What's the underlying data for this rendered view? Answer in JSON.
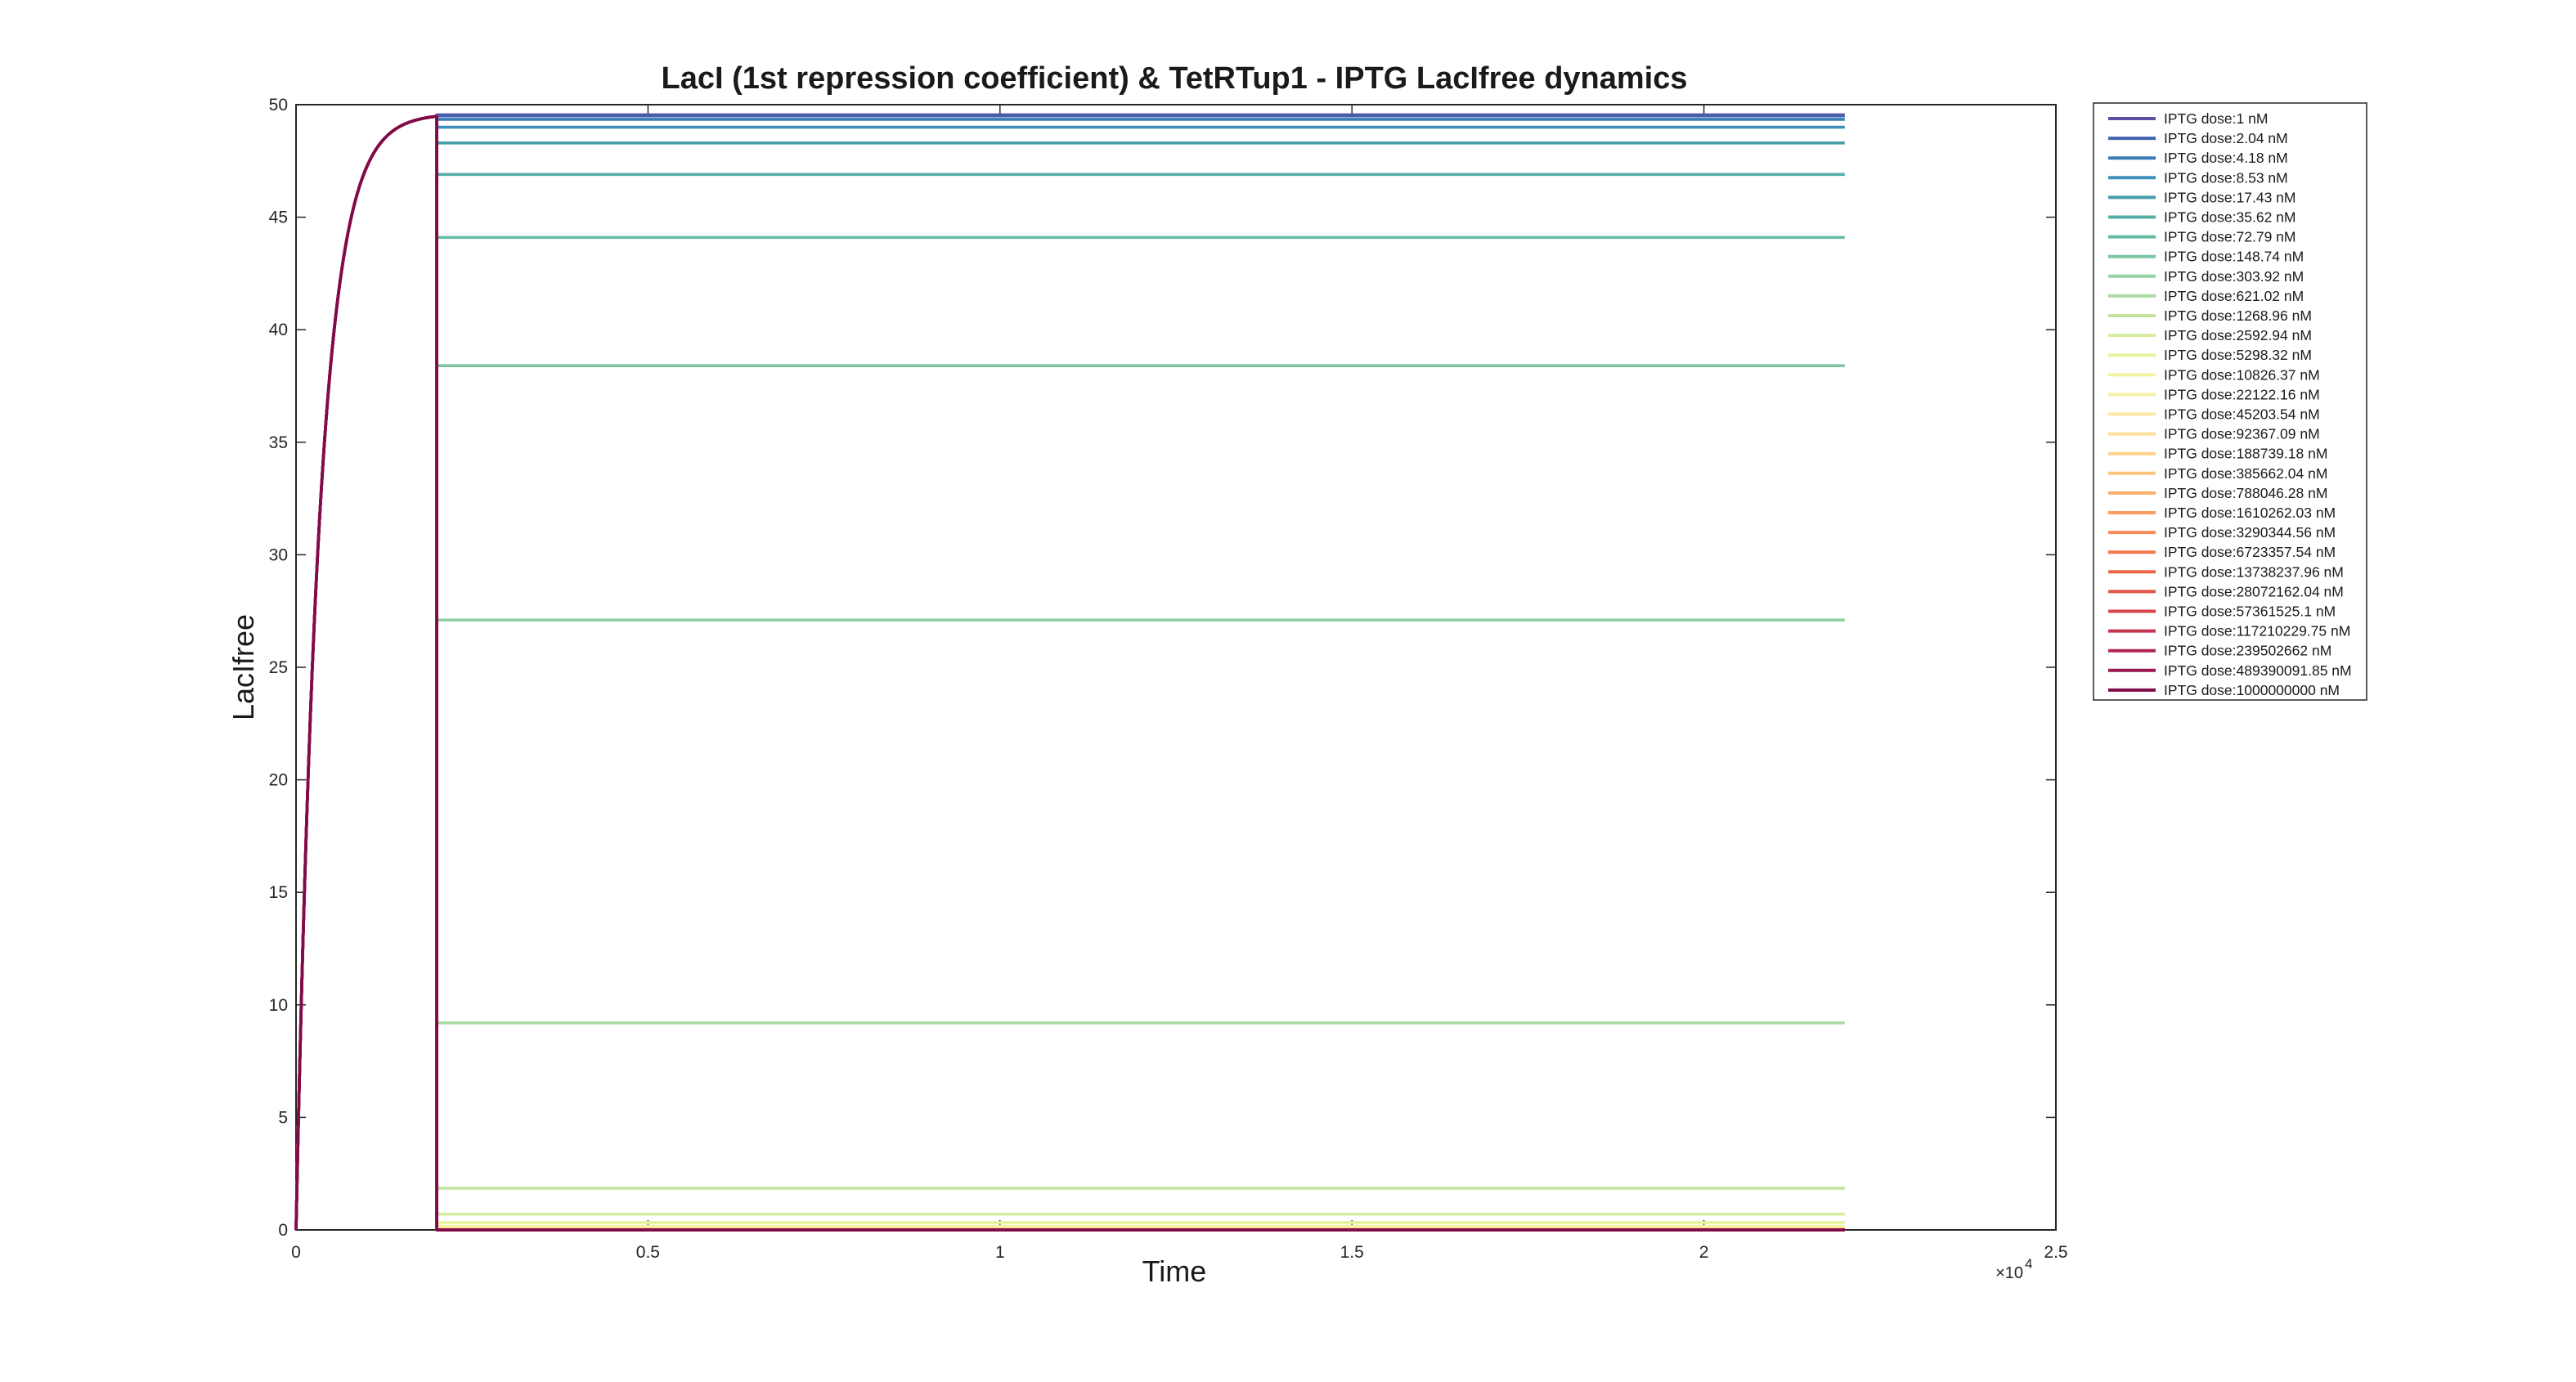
{
  "chart_data": {
    "type": "line",
    "title": "LacI (1st repression coefficient) & TetRTup1 - IPTG LacIfree dynamics",
    "xlabel": "Time",
    "ylabel": "LacIfree",
    "xlim": [
      0,
      25000
    ],
    "ylim": [
      0,
      50
    ],
    "xticks": [
      0,
      5000,
      10000,
      15000,
      20000,
      25000
    ],
    "xtick_labels": [
      "0",
      "0.5",
      "1",
      "1.5",
      "2",
      "2.5"
    ],
    "x_exponent": {
      "base": "×10",
      "power": "4"
    },
    "yticks": [
      0,
      5,
      10,
      15,
      20,
      25,
      30,
      35,
      40,
      45,
      50
    ],
    "ytick_labels": [
      "0",
      "5",
      "10",
      "15",
      "20",
      "25",
      "30",
      "35",
      "40",
      "45",
      "50"
    ],
    "grid": false,
    "legend_position": "outside-right-top",
    "initial_phase": {
      "end_time": 2000,
      "steady_value": 49.6
    },
    "dose_time": 2000,
    "end_time": 22000,
    "series": [
      {
        "name": "IPTG dose:1 nM",
        "color": "#5e4fa2",
        "steady_value": 49.55
      },
      {
        "name": "IPTG dose:2.04 nM",
        "color": "#3f64ad",
        "steady_value": 49.5
      },
      {
        "name": "IPTG dose:4.18 nM",
        "color": "#3a7bb8",
        "steady_value": 49.35
      },
      {
        "name": "IPTG dose:8.53 nM",
        "color": "#3d8fb9",
        "steady_value": 49.0
      },
      {
        "name": "IPTG dose:17.43 nM",
        "color": "#46a0a8",
        "steady_value": 48.3
      },
      {
        "name": "IPTG dose:35.62 nM",
        "color": "#54aea6",
        "steady_value": 46.9
      },
      {
        "name": "IPTG dose:72.79 nM",
        "color": "#66bba4",
        "steady_value": 44.1
      },
      {
        "name": "IPTG dose:148.74 nM",
        "color": "#7cc6a4",
        "steady_value": 38.4
      },
      {
        "name": "IPTG dose:303.92 nM",
        "color": "#93d0a3",
        "steady_value": 27.1
      },
      {
        "name": "IPTG dose:621.02 nM",
        "color": "#abdaa2",
        "steady_value": 9.2
      },
      {
        "name": "IPTG dose:1268.96 nM",
        "color": "#c3e3a1",
        "steady_value": 1.85
      },
      {
        "name": "IPTG dose:2592.94 nM",
        "color": "#d8ec9f",
        "steady_value": 0.7
      },
      {
        "name": "IPTG dose:5298.32 nM",
        "color": "#e8f29d",
        "steady_value": 0.33
      },
      {
        "name": "IPTG dose:10826.37 nM",
        "color": "#f2f3a4",
        "steady_value": 0.16
      },
      {
        "name": "IPTG dose:22122.16 nM",
        "color": "#f8efa8",
        "steady_value": 0.08
      },
      {
        "name": "IPTG dose:45203.54 nM",
        "color": "#fde9a5",
        "steady_value": 0.04
      },
      {
        "name": "IPTG dose:92367.09 nM",
        "color": "#fee09a",
        "steady_value": 0.02
      },
      {
        "name": "IPTG dose:188739.18 nM",
        "color": "#fed48b",
        "steady_value": 0.01
      },
      {
        "name": "IPTG dose:385662.04 nM",
        "color": "#fdc47b",
        "steady_value": 0.005
      },
      {
        "name": "IPTG dose:788046.28 nM",
        "color": "#fdb16d",
        "steady_value": 0.003
      },
      {
        "name": "IPTG dose:1610262.03 nM",
        "color": "#fb9d60",
        "steady_value": 0.001
      },
      {
        "name": "IPTG dose:3290344.56 nM",
        "color": "#f88a55",
        "steady_value": 0.0
      },
      {
        "name": "IPTG dose:6723357.54 nM",
        "color": "#f3774c",
        "steady_value": 0.0
      },
      {
        "name": "IPTG dose:13738237.96 nM",
        "color": "#ec6546",
        "steady_value": 0.0
      },
      {
        "name": "IPTG dose:28072162.04 nM",
        "color": "#e2554a",
        "steady_value": 0.0
      },
      {
        "name": "IPTG dose:57361525.1 nM",
        "color": "#d6454c",
        "steady_value": 0.0
      },
      {
        "name": "IPTG dose:117210229.75 nM",
        "color": "#c6354f",
        "steady_value": 0.0
      },
      {
        "name": "IPTG dose:239502662 nM",
        "color": "#b22550",
        "steady_value": 0.0
      },
      {
        "name": "IPTG dose:489390091.85 nM",
        "color": "#9a1750",
        "steady_value": 0.0
      },
      {
        "name": "IPTG dose:1000000000 nM",
        "color": "#7f0b4b",
        "steady_value": 0.0
      }
    ]
  }
}
